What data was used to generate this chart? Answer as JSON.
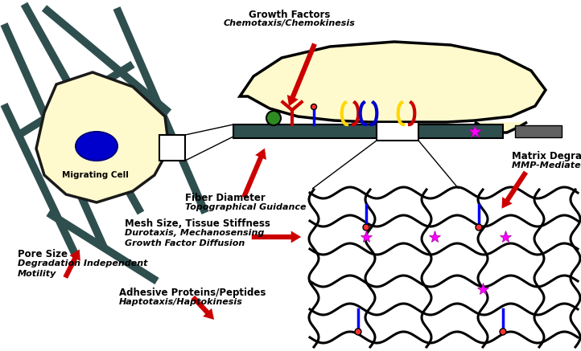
{
  "title_labels": {
    "growth_factors": "Growth Factors",
    "chemotaxis": "Chemotaxis/Chemokinesis",
    "fiber_diameter": "Fiber Diameter",
    "topographical": "Topographical Guidance",
    "matrix_degradability": "Matrix Degradability",
    "mmp_mediated": "MMP-Mediated Motility",
    "pore_size": "Pore Size",
    "degradation_independent": "Degradation Independent",
    "motility": "Motility",
    "mesh_size": "Mesh Size, Tissue Stiffness",
    "durotaxis": "Durotaxis, Mechanosensing",
    "growth_factor_diffusion": "Growth Factor Diffusion",
    "adhesive": "Adhesive Proteins/Peptides",
    "haptotaxis": "Haptotaxis/Haptokinesis",
    "migrating_cell": "Migrating Cell"
  },
  "colors": {
    "cell_body": "#FFFACD",
    "cell_outline": "#1a1a1a",
    "nucleus": "#0000CD",
    "fiber": "#2F4F4F",
    "arrow_red": "#CC0000",
    "tissue_fill": "#FFFACD",
    "matrix_line": "#1a1a1a",
    "star_magenta": "#FF00FF",
    "peptide_blue": "#0000FF",
    "receptor_red": "#CC0000",
    "receptor_yellow": "#FFD700",
    "receptor_blue": "#0000CD",
    "growth_factor_green": "#228B22",
    "fiber_bar_fill": "#2F4F4F",
    "gray_bar": "#606060",
    "background": "#FFFFFF"
  },
  "figure_size": [
    7.22,
    4.37
  ],
  "dpi": 100
}
